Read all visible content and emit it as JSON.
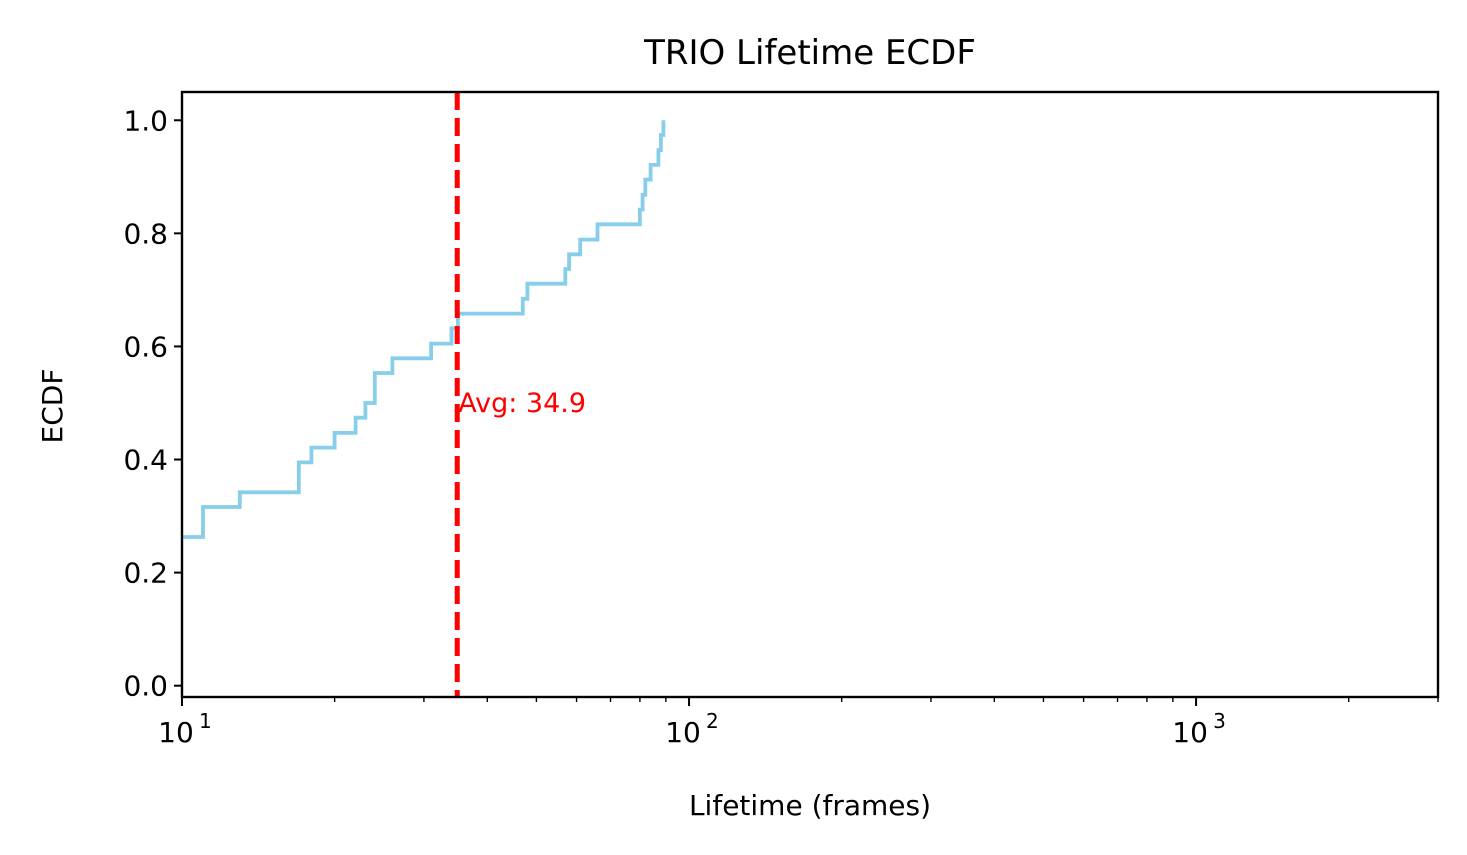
{
  "chart_data": {
    "type": "line",
    "title": "TRIO Lifetime ECDF",
    "xlabel": "Lifetime (frames)",
    "ylabel": "ECDF",
    "xscale": "log",
    "xlim": [
      10,
      3000
    ],
    "ylim": [
      -0.02,
      1.05
    ],
    "yticks": [
      0.0,
      0.2,
      0.4,
      0.6,
      0.8,
      1.0
    ],
    "ytick_labels": [
      "0.0",
      "0.2",
      "0.4",
      "0.6",
      "0.8",
      "1.0"
    ],
    "xticks": [
      {
        "value": 10,
        "base": "10",
        "exp": "1"
      },
      {
        "value": 100,
        "base": "10",
        "exp": "2"
      },
      {
        "value": 1000,
        "base": "10",
        "exp": "3"
      }
    ],
    "grid": false,
    "series": [
      {
        "step": "post",
        "color": "#87CEEB",
        "x": [
          10,
          11,
          13,
          17,
          18,
          20,
          22,
          23,
          24,
          26,
          31,
          34,
          35,
          47,
          48,
          57,
          58,
          61,
          62,
          66,
          67,
          80,
          81,
          82,
          84,
          85,
          87,
          88,
          89
        ],
        "y": [
          0.263,
          0.316,
          0.342,
          0.395,
          0.421,
          0.447,
          0.474,
          0.5,
          0.553,
          0.579,
          0.605,
          0.632,
          0.658,
          0.684,
          0.711,
          0.737,
          0.763,
          0.789,
          0.789,
          0.816,
          0.816,
          0.842,
          0.868,
          0.895,
          0.921,
          0.921,
          0.947,
          0.974,
          1.0
        ]
      }
    ],
    "vline": {
      "x": 34.9,
      "color": "#FF0000",
      "style": "dashed"
    },
    "annotation": {
      "text": "Avg: 34.9",
      "x": 34.9,
      "y": 0.5,
      "color": "#FF0000"
    }
  }
}
